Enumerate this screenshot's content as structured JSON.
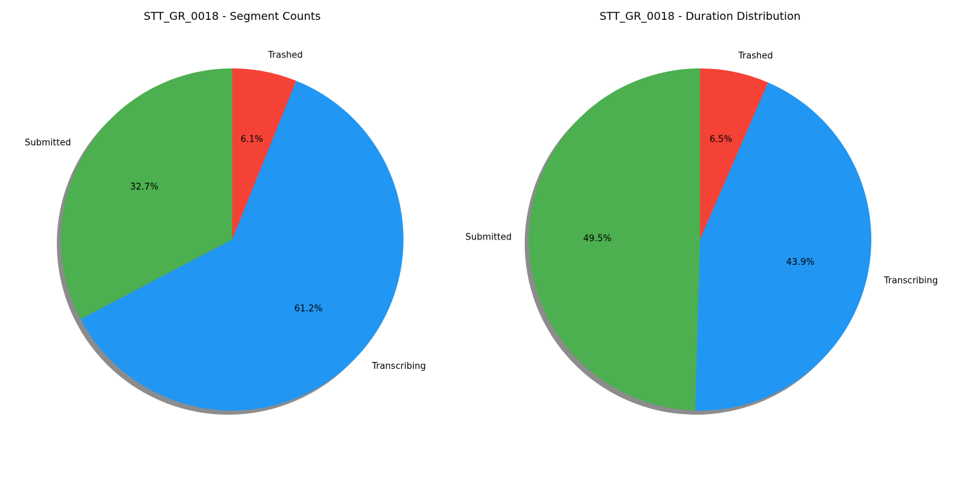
{
  "chart_data": [
    {
      "type": "pie",
      "title": "STT_GR_0018 - Segment Counts",
      "categories": [
        "Trashed",
        "Transcribing",
        "Submitted"
      ],
      "values": [
        6.1,
        61.2,
        32.7
      ],
      "value_labels": [
        "6.1%",
        "61.2%",
        "32.7%"
      ],
      "colors": [
        "#f44336",
        "#2196f3",
        "#4caf50"
      ],
      "start_angle_deg": 90,
      "direction": "clockwise",
      "shadow": true
    },
    {
      "type": "pie",
      "title": "STT_GR_0018 - Duration Distribution",
      "categories": [
        "Trashed",
        "Transcribing",
        "Submitted"
      ],
      "values": [
        6.5,
        43.9,
        49.5
      ],
      "value_labels": [
        "6.5%",
        "43.9%",
        "49.5%"
      ],
      "colors": [
        "#f44336",
        "#2196f3",
        "#4caf50"
      ],
      "start_angle_deg": 90,
      "direction": "clockwise",
      "shadow": true
    }
  ]
}
